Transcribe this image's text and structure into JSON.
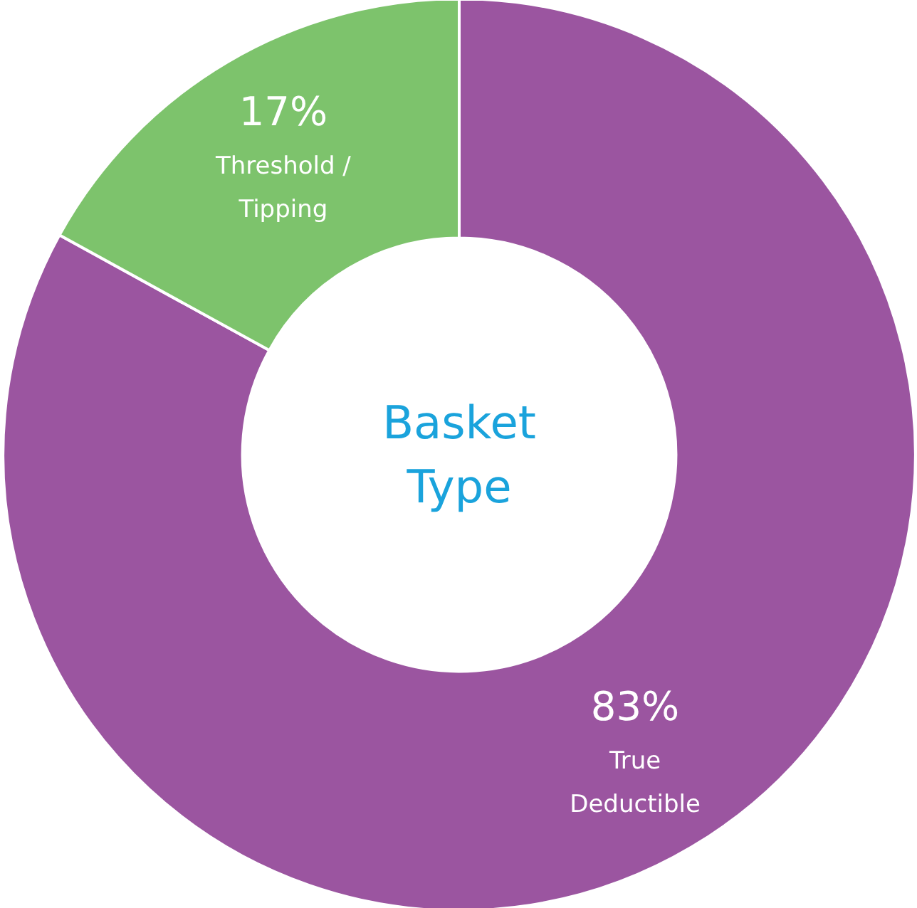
{
  "chart_data": {
    "type": "donut",
    "title": "Basket Type",
    "categories": [
      "True Deductible",
      "Threshold / Tipping"
    ],
    "values": [
      83,
      17
    ],
    "colors": [
      "#9b55a0",
      "#7dc36c"
    ],
    "value_labels": [
      "83%",
      "17%"
    ]
  }
}
